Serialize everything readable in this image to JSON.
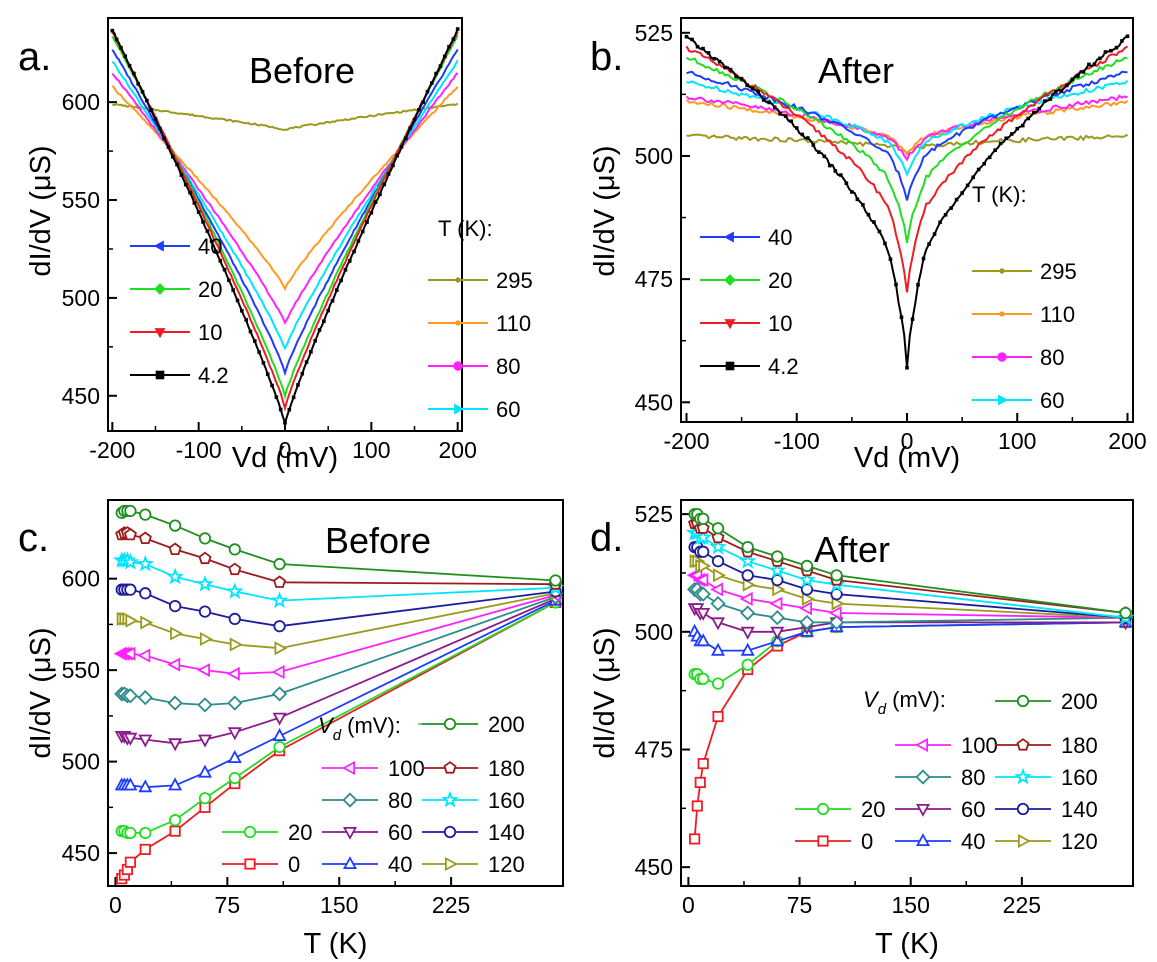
{
  "chart_data": [
    {
      "id": "a",
      "panel_label": "a.",
      "title": "Before",
      "type": "line",
      "xlabel": "Vd (mV)",
      "ylabel": "dI/dV (μS)",
      "xlim": [
        -205,
        205
      ],
      "ylim": [
        432,
        643
      ],
      "xticks": [
        -200,
        -100,
        0,
        100,
        200
      ],
      "yticks": [
        450,
        500,
        550,
        600
      ],
      "legend_header": "T (K):",
      "series": [
        {
          "name": "4.2",
          "color": "#000000",
          "marker": "square",
          "values": {
            "edge": 637,
            "zero": 436
          }
        },
        {
          "name": "10",
          "color": "#ee1c25",
          "marker": "triangle-down",
          "values": {
            "edge": 636,
            "zero": 444
          }
        },
        {
          "name": "20",
          "color": "#22dd22",
          "marker": "diamond",
          "values": {
            "edge": 634,
            "zero": 450
          }
        },
        {
          "name": "40",
          "color": "#1e3cff",
          "marker": "triangle-left",
          "values": {
            "edge": 627,
            "zero": 462
          }
        },
        {
          "name": "60",
          "color": "#00e5ff",
          "marker": "triangle-right",
          "values": {
            "edge": 621,
            "zero": 474
          }
        },
        {
          "name": "80",
          "color": "#ff22ff",
          "marker": "circle",
          "values": {
            "edge": 615,
            "zero": 487
          }
        },
        {
          "name": "110",
          "color": "#ff9922",
          "marker": "dot",
          "values": {
            "edge": 608,
            "zero": 505
          }
        },
        {
          "name": "295",
          "color": "#9a9a1e",
          "marker": "dot",
          "values": {
            "edge": 599,
            "zero": 586
          }
        }
      ]
    },
    {
      "id": "b",
      "panel_label": "b.",
      "title": "After",
      "type": "line",
      "xlabel": "Vd (mV)",
      "ylabel": "dI/dV (μS)",
      "xlim": [
        -205,
        205
      ],
      "ylim": [
        446,
        528
      ],
      "xticks": [
        -200,
        -100,
        0,
        100,
        200
      ],
      "yticks": [
        450,
        475,
        500,
        525
      ],
      "legend_header": "T (K):",
      "series": [
        {
          "name": "4.2",
          "color": "#000000",
          "marker": "square",
          "values": {
            "edge": 524,
            "zero": 457
          }
        },
        {
          "name": "10",
          "color": "#ee1c25",
          "marker": "triangle-down",
          "values": {
            "edge": 522,
            "zero": 472
          }
        },
        {
          "name": "20",
          "color": "#22dd22",
          "marker": "diamond",
          "values": {
            "edge": 520,
            "zero": 482
          }
        },
        {
          "name": "40",
          "color": "#1e3cff",
          "marker": "triangle-left",
          "values": {
            "edge": 517,
            "zero": 491
          }
        },
        {
          "name": "60",
          "color": "#00e5ff",
          "marker": "triangle-right",
          "values": {
            "edge": 515,
            "zero": 496
          }
        },
        {
          "name": "80",
          "color": "#ff22ff",
          "marker": "circle",
          "values": {
            "edge": 512,
            "zero": 499
          }
        },
        {
          "name": "110",
          "color": "#ff9922",
          "marker": "dot",
          "values": {
            "edge": 511,
            "zero": 500
          }
        },
        {
          "name": "295",
          "color": "#9a9a1e",
          "marker": "dot",
          "values": {
            "edge": 504,
            "zero": 501
          }
        }
      ]
    },
    {
      "id": "c",
      "panel_label": "c.",
      "title": "Before",
      "type": "line",
      "xlabel": "T (K)",
      "ylabel": "dI/dV (μS)",
      "xlim": [
        -5,
        300
      ],
      "ylim": [
        432,
        643
      ],
      "xticks": [
        0,
        75,
        150,
        225
      ],
      "yticks": [
        450,
        500,
        550,
        600
      ],
      "legend_header": "V_d (mV):",
      "x": [
        4.2,
        6,
        8,
        10,
        20,
        40,
        60,
        80,
        110,
        295
      ],
      "series": [
        {
          "name": "0",
          "color": "#ee1c25",
          "marker": "square",
          "values": [
            436,
            438,
            441,
            445,
            452,
            462,
            475,
            488,
            506,
            587
          ]
        },
        {
          "name": "20",
          "color": "#22dd22",
          "marker": "circle",
          "values": [
            462,
            462,
            461,
            461,
            461,
            468,
            480,
            491,
            508,
            587
          ]
        },
        {
          "name": "40",
          "color": "#1e3cff",
          "marker": "triangle-up",
          "values": [
            487,
            487,
            487,
            487,
            486,
            487,
            494,
            502,
            514,
            588
          ]
        },
        {
          "name": "60",
          "color": "#8b1a8b",
          "marker": "triangle-down",
          "values": [
            514,
            514,
            513,
            513,
            512,
            510,
            512,
            516,
            524,
            589
          ]
        },
        {
          "name": "80",
          "color": "#2e8b8b",
          "marker": "diamond",
          "values": [
            537,
            537,
            536,
            536,
            535,
            532,
            531,
            532,
            537,
            590
          ]
        },
        {
          "name": "100",
          "color": "#ff22ff",
          "marker": "triangle-left",
          "values": [
            559,
            559,
            559,
            559,
            558,
            553,
            550,
            548,
            549,
            591
          ]
        },
        {
          "name": "120",
          "color": "#9a9a1e",
          "marker": "triangle-right",
          "values": [
            578,
            578,
            578,
            577,
            576,
            570,
            567,
            564,
            562,
            592
          ]
        },
        {
          "name": "140",
          "color": "#1c1c9c",
          "marker": "circle",
          "values": [
            594,
            594,
            594,
            594,
            592,
            585,
            582,
            578,
            574,
            593
          ]
        },
        {
          "name": "160",
          "color": "#00e5ff",
          "marker": "star",
          "values": [
            610,
            610,
            610,
            609,
            608,
            601,
            597,
            593,
            588,
            595
          ]
        },
        {
          "name": "180",
          "color": "#9c1c1c",
          "marker": "pentagon",
          "values": [
            624,
            625,
            625,
            624,
            622,
            616,
            611,
            605,
            598,
            597
          ]
        },
        {
          "name": "200",
          "color": "#1f8f1f",
          "marker": "circle",
          "values": [
            636,
            637,
            637,
            637,
            635,
            629,
            622,
            616,
            608,
            599
          ]
        }
      ]
    },
    {
      "id": "d",
      "panel_label": "d.",
      "title": "After",
      "type": "line",
      "xlabel": "T (K)",
      "ylabel": "dI/dV (μS)",
      "xlim": [
        -5,
        300
      ],
      "ylim": [
        446,
        528
      ],
      "xticks": [
        0,
        75,
        150,
        225
      ],
      "yticks": [
        450,
        475,
        500,
        525
      ],
      "legend_header": "V_d (mV):",
      "x": [
        4.2,
        6,
        8,
        10,
        20,
        40,
        60,
        80,
        100,
        295
      ],
      "series": [
        {
          "name": "0",
          "color": "#ee1c25",
          "marker": "square",
          "values": [
            456,
            463,
            468,
            472,
            482,
            492,
            497,
            500,
            501,
            502
          ]
        },
        {
          "name": "20",
          "color": "#22dd22",
          "marker": "circle",
          "values": [
            491,
            491,
            490,
            490,
            489,
            493,
            498,
            500,
            501,
            502
          ]
        },
        {
          "name": "40",
          "color": "#1e3cff",
          "marker": "triangle-up",
          "values": [
            500,
            499,
            498,
            498,
            496,
            496,
            498,
            500,
            501,
            502
          ]
        },
        {
          "name": "60",
          "color": "#8b1a8b",
          "marker": "triangle-down",
          "values": [
            505,
            505,
            504,
            504,
            502,
            500,
            500,
            501,
            502,
            502
          ]
        },
        {
          "name": "80",
          "color": "#2e8b8b",
          "marker": "diamond",
          "values": [
            509,
            509,
            508,
            508,
            506,
            504,
            503,
            502,
            502,
            503
          ]
        },
        {
          "name": "100",
          "color": "#ff22ff",
          "marker": "triangle-left",
          "values": [
            512,
            512,
            511,
            511,
            509,
            507,
            506,
            505,
            504,
            503
          ]
        },
        {
          "name": "120",
          "color": "#9a9a1e",
          "marker": "triangle-right",
          "values": [
            515,
            515,
            514,
            514,
            512,
            510,
            509,
            507,
            506,
            503
          ]
        },
        {
          "name": "140",
          "color": "#1c1c9c",
          "marker": "circle",
          "values": [
            518,
            518,
            517,
            517,
            515,
            512,
            511,
            509,
            508,
            503
          ]
        },
        {
          "name": "160",
          "color": "#00e5ff",
          "marker": "star",
          "values": [
            521,
            521,
            520,
            520,
            518,
            515,
            513,
            511,
            510,
            503
          ]
        },
        {
          "name": "180",
          "color": "#9c1c1c",
          "marker": "pentagon",
          "values": [
            523,
            523,
            522,
            522,
            520,
            517,
            515,
            513,
            511,
            504
          ]
        },
        {
          "name": "200",
          "color": "#1f8f1f",
          "marker": "circle",
          "values": [
            525,
            525,
            524,
            524,
            522,
            518,
            516,
            514,
            512,
            504
          ]
        }
      ]
    }
  ]
}
